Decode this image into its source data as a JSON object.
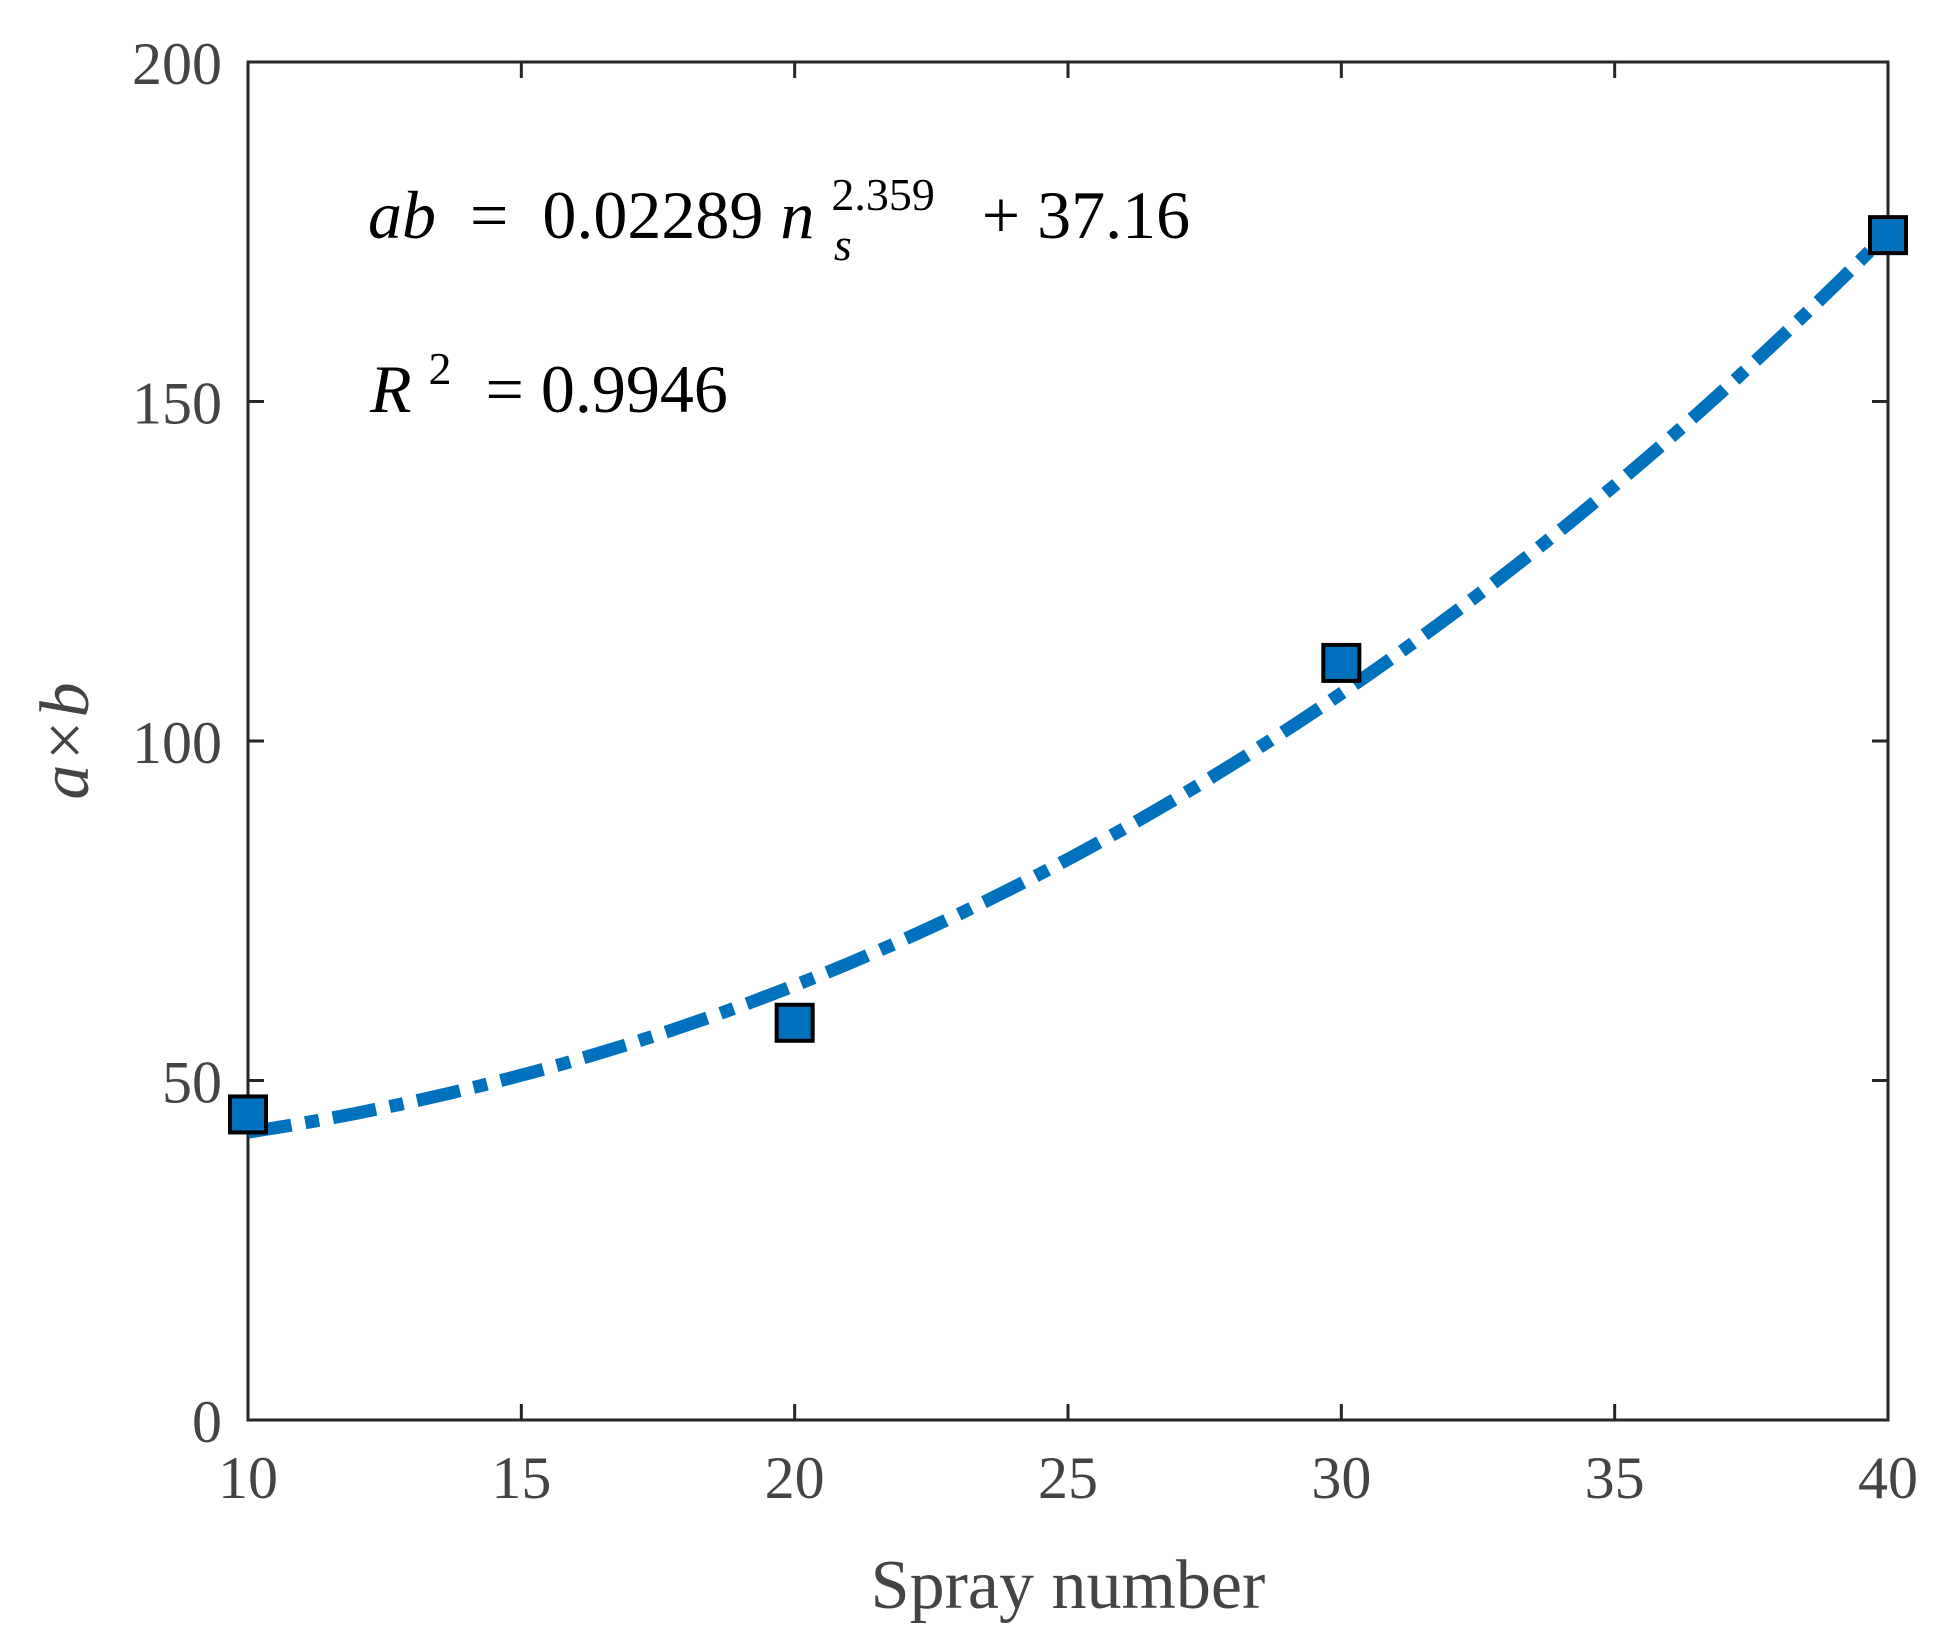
{
  "chart_data": {
    "type": "scatter",
    "title": "",
    "xlabel": "Spray number",
    "ylabel": "a×b",
    "xlim": [
      10,
      40
    ],
    "ylim": [
      0,
      200
    ],
    "x_ticks": [
      10,
      15,
      20,
      25,
      30,
      35,
      40
    ],
    "y_ticks": [
      0,
      50,
      100,
      150,
      200
    ],
    "grid": false,
    "series": [
      {
        "kind": "points",
        "marker": "square",
        "color": "#0072BD",
        "points": [
          {
            "x": 10,
            "y": 45
          },
          {
            "x": 20,
            "y": 58.5
          },
          {
            "x": 30,
            "y": 111.5
          },
          {
            "x": 40,
            "y": 174.5
          }
        ]
      },
      {
        "kind": "fit",
        "style": "dash-dot",
        "color": "#0072BD",
        "formula": {
          "coef": 0.02289,
          "exp": 2.359,
          "intercept": 37.16
        }
      }
    ],
    "annotations": {
      "equation": {
        "lhs": "ab",
        "equals": " = ",
        "coef": "0.02289",
        "var": "n",
        "sub": "s",
        "exp": "2.359",
        "tail": " + 37.16"
      },
      "r2": {
        "var": "R",
        "exp": "2",
        "tail": " = 0.9946"
      }
    }
  }
}
